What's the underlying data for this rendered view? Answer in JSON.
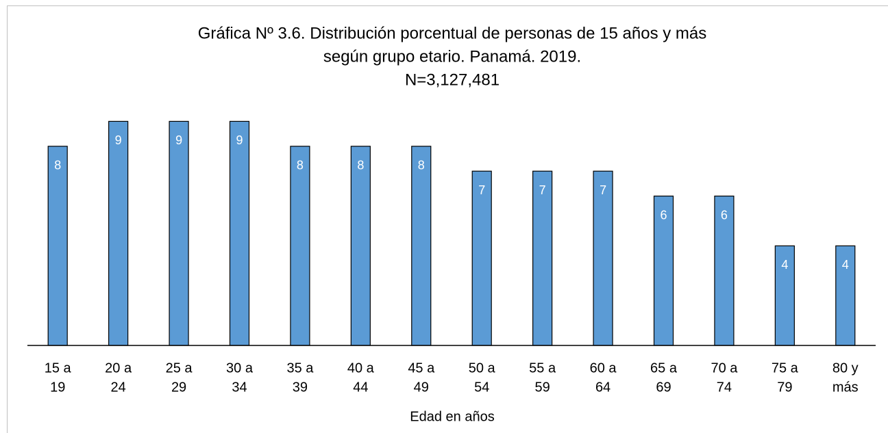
{
  "chart_data": {
    "type": "bar",
    "title": [
      "Gráfica Nº 3.6. Distribución porcentual de personas de 15 años y más",
      "según grupo etario. Panamá. 2019.",
      "N=3,127,481"
    ],
    "x_label": "Edad en años",
    "categories": [
      [
        "15 a",
        "19"
      ],
      [
        "20 a",
        "24"
      ],
      [
        "25 a",
        "29"
      ],
      [
        "30 a",
        "34"
      ],
      [
        "35 a",
        "39"
      ],
      [
        "40 a",
        "44"
      ],
      [
        "45 a",
        "49"
      ],
      [
        "50 a",
        "54"
      ],
      [
        "55 a",
        "59"
      ],
      [
        "60 a",
        "64"
      ],
      [
        "65 a",
        "69"
      ],
      [
        "70 a",
        "74"
      ],
      [
        "75 a",
        "79"
      ],
      [
        "80 y",
        "más"
      ]
    ],
    "values": [
      8,
      9,
      9,
      9,
      8,
      8,
      8,
      7,
      7,
      7,
      6,
      6,
      4,
      4
    ],
    "color": "#5b9bd5"
  }
}
